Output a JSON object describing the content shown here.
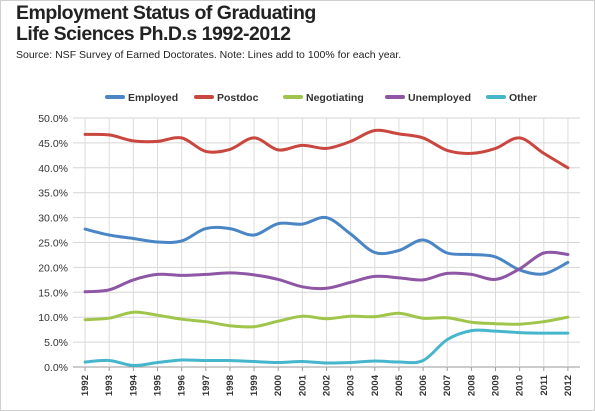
{
  "title_line1": "Employment Status of Graduating",
  "title_line2": "Life Sciences Ph.D.s 1992-2012",
  "subtitle": "Source: NSF Survey of Earned Doctorates. Note: Lines add to 100% for each year.",
  "chart_data": {
    "type": "line",
    "title": "Employment Status of Graduating Life Sciences Ph.D.s 1992-2012",
    "subtitle": "Source: NSF Survey of Earned Doctorates. Note: Lines add to 100% for each year.",
    "xlabel": "",
    "ylabel": "",
    "x": [
      "1992",
      "1993",
      "1994",
      "1995",
      "1996",
      "1997",
      "1998",
      "1999",
      "2000",
      "2001",
      "2002",
      "2003",
      "2004",
      "2005",
      "2006",
      "2007",
      "2008",
      "2009",
      "2010",
      "2011",
      "2012"
    ],
    "ylim": [
      0,
      50
    ],
    "yticks": [
      "0.0%",
      "5.0%",
      "10.0%",
      "15.0%",
      "20.0%",
      "25.0%",
      "30.0%",
      "35.0%",
      "40.0%",
      "45.0%",
      "50.0%"
    ],
    "grid": true,
    "legend_position": "top",
    "series": [
      {
        "name": "Employed",
        "color": "#4a86c5",
        "values": [
          27.7,
          26.5,
          25.8,
          25.1,
          25.3,
          27.8,
          27.8,
          26.5,
          28.8,
          28.7,
          30.0,
          26.7,
          23.0,
          23.4,
          25.5,
          22.9,
          22.6,
          22.1,
          19.5,
          18.7,
          21.0
        ]
      },
      {
        "name": "Postdoc",
        "color": "#c9473f",
        "values": [
          46.7,
          46.6,
          45.4,
          45.3,
          46.0,
          43.3,
          43.7,
          46.0,
          43.6,
          44.5,
          43.9,
          45.3,
          47.5,
          46.8,
          46.0,
          43.5,
          42.9,
          43.9,
          46.0,
          42.9,
          40.0
        ]
      },
      {
        "name": "Negotiating",
        "color": "#9fc54a",
        "values": [
          9.5,
          9.8,
          11.0,
          10.4,
          9.6,
          9.1,
          8.3,
          8.1,
          9.2,
          10.2,
          9.7,
          10.2,
          10.1,
          10.8,
          9.8,
          9.9,
          9.0,
          8.7,
          8.6,
          9.1,
          10.0
        ]
      },
      {
        "name": "Unemployed",
        "color": "#8e56a4",
        "values": [
          15.1,
          15.5,
          17.5,
          18.6,
          18.4,
          18.6,
          18.9,
          18.5,
          17.6,
          16.1,
          15.8,
          17.0,
          18.2,
          17.9,
          17.5,
          18.8,
          18.6,
          17.6,
          19.7,
          22.9,
          22.6
        ]
      },
      {
        "name": "Other",
        "color": "#46b6cc",
        "values": [
          1.0,
          1.3,
          0.3,
          0.9,
          1.4,
          1.3,
          1.3,
          1.1,
          0.9,
          1.1,
          0.8,
          0.9,
          1.2,
          1.0,
          1.3,
          5.5,
          7.3,
          7.2,
          6.9,
          6.8,
          6.8
        ]
      }
    ]
  }
}
